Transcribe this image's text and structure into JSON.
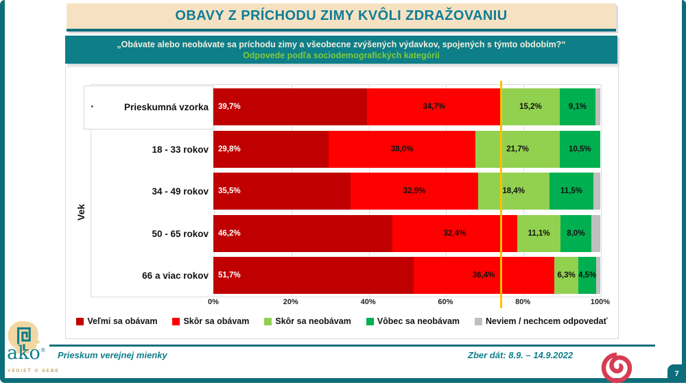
{
  "title": "OBAVY Z PRÍCHODU ZIMY KVÔLI ZDRAŽOVANIU",
  "subtitle": {
    "question": "„Obávate alebo neobávate sa príchodu zimy a všeobecne zvýšených výdavkov, spojených s týmto obdobím?“",
    "note": "Odpovede podľa sociodemografických kategórií"
  },
  "chart_data": {
    "type": "bar",
    "stacked": true,
    "orientation": "horizontal",
    "axis_label": "Vek",
    "highlight_bullet": "·",
    "categories": [
      "Prieskumná vzorka",
      "18 - 33 rokov",
      "34 - 49 rokov",
      "50 - 65 rokov",
      "66 a viac rokov"
    ],
    "series": [
      {
        "name": "Veľmi sa obávam",
        "color": "#c00000",
        "values": [
          39.7,
          29.8,
          35.5,
          46.2,
          51.7
        ],
        "show_labels": true
      },
      {
        "name": "Skôr sa obávam",
        "color": "#ff0000",
        "values": [
          34.7,
          38.0,
          32.9,
          32.4,
          36.4
        ],
        "show_labels": true
      },
      {
        "name": "Skôr sa neobávam",
        "color": "#92d050",
        "values": [
          15.2,
          21.7,
          18.4,
          11.1,
          6.3
        ],
        "show_labels": true
      },
      {
        "name": "Vôbec sa neobávam",
        "color": "#00b050",
        "values": [
          9.1,
          10.5,
          11.5,
          8.0,
          4.5
        ],
        "show_labels": true
      },
      {
        "name": "Neviem / nechcem odpovedať",
        "color": "#bfbfbf",
        "values": [
          1.3,
          0.0,
          1.7,
          2.3,
          1.1
        ],
        "show_labels": false
      }
    ],
    "x_ticks": [
      "0%",
      "20%",
      "40%",
      "60%",
      "80%",
      "100%"
    ],
    "xlim": [
      0,
      100
    ],
    "gridlines": true,
    "reference_line": {
      "value": 74.4,
      "color": "#ffc000"
    },
    "value_label_format": "comma-decimal percent",
    "legend_position": "bottom"
  },
  "footer": {
    "left_text": "Prieskum verejnej mienky",
    "right_text": "Zber dát: 8.9. – 14.9.2022",
    "logo": {
      "name": "ako",
      "tagline": "VEDIEŤ O SEBE"
    },
    "page_number": "7"
  },
  "colors": {
    "frame_teal": "#0d6e7b",
    "band_teal": "#0e7e89",
    "title_text": "#0e7d96",
    "title_bg": "#f6e2c2",
    "subtitle_note_green": "#7ecb3a",
    "reference_line": "#ffc000",
    "spiral_red": "#d63d54",
    "logo_beige": "#f2d7a3"
  }
}
